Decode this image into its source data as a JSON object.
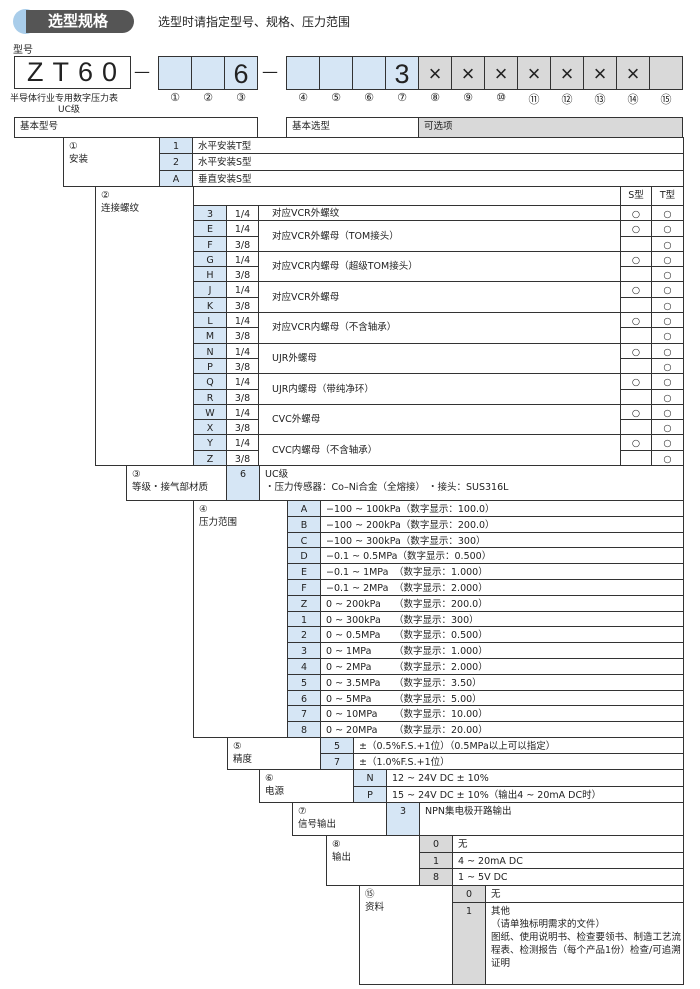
{
  "header": {
    "title": "选型规格",
    "subtitle": "选型时请指定型号、规格、压力范围"
  },
  "model": {
    "label": "型号",
    "base": "ZT60",
    "desc": "半导体行业专用数字压力表",
    "grade": "UC级",
    "dash": "—",
    "group1": [
      "",
      "",
      "6"
    ],
    "group2": [
      "",
      "",
      "",
      "3",
      "×",
      "×",
      "×",
      "×",
      "×",
      "×",
      "×",
      ""
    ],
    "numbers": [
      "①",
      "②",
      "③",
      "④",
      "⑤",
      "⑥",
      "⑦",
      "⑧",
      "⑨",
      "⑩",
      "⑪",
      "⑫",
      "⑬",
      "⑭",
      "⑮"
    ]
  },
  "legend": {
    "basic_model": "基本型号",
    "basic_selection": "基本选型",
    "optional": "可选项"
  },
  "colors": {
    "code_blue": "#d6e6f5",
    "optional_gray": "#d9d9d9",
    "pill": "#555555",
    "dot": "#a9cdea"
  },
  "sections": {
    "s1": {
      "num": "①",
      "label": "安装",
      "rows": [
        {
          "code": "1",
          "text": "水平安装T型"
        },
        {
          "code": "2",
          "text": "水平安装S型"
        },
        {
          "code": "A",
          "text": "垂直安装S型"
        }
      ]
    },
    "s2": {
      "num": "②",
      "label": "连接螺纹",
      "col_s": "S型",
      "col_t": "T型",
      "mark": "○",
      "rows": [
        {
          "code": "3",
          "size": "1/4",
          "s": true,
          "t": true
        },
        {
          "code": "E",
          "size": "1/4",
          "s": true,
          "t": true
        },
        {
          "code": "F",
          "size": "3/8",
          "s": false,
          "t": true
        },
        {
          "code": "G",
          "size": "1/4",
          "s": true,
          "t": true
        },
        {
          "code": "H",
          "size": "3/8",
          "s": false,
          "t": true
        },
        {
          "code": "J",
          "size": "1/4",
          "s": true,
          "t": true
        },
        {
          "code": "K",
          "size": "3/8",
          "s": false,
          "t": true
        },
        {
          "code": "L",
          "size": "1/4",
          "s": true,
          "t": true
        },
        {
          "code": "M",
          "size": "3/8",
          "s": false,
          "t": true
        },
        {
          "code": "N",
          "size": "1/4",
          "s": true,
          "t": true
        },
        {
          "code": "P",
          "size": "3/8",
          "s": false,
          "t": true
        },
        {
          "code": "Q",
          "size": "1/4",
          "s": true,
          "t": true
        },
        {
          "code": "R",
          "size": "3/8",
          "s": false,
          "t": true
        },
        {
          "code": "W",
          "size": "1/4",
          "s": true,
          "t": true
        },
        {
          "code": "X",
          "size": "3/8",
          "s": false,
          "t": true
        },
        {
          "code": "Y",
          "size": "1/4",
          "s": true,
          "t": true
        },
        {
          "code": "Z",
          "size": "3/8",
          "s": false,
          "t": true
        }
      ],
      "groups": [
        {
          "text": "对应VCR外螺纹",
          "span": 1
        },
        {
          "text": "对应VCR外螺母（TOM接头）",
          "span": 2
        },
        {
          "text": "对应VCR内螺母（超级TOM接头）",
          "span": 2
        },
        {
          "text": "对应VCR外螺母",
          "span": 2
        },
        {
          "text": "对应VCR内螺母（不含轴承）",
          "span": 2
        },
        {
          "text": "UJR外螺母",
          "span": 2
        },
        {
          "text": "UJR内螺母（带纯净环）",
          "span": 2
        },
        {
          "text": "CVC外螺母",
          "span": 2
        },
        {
          "text": "CVC内螺母（不含轴承）",
          "span": 2
        }
      ]
    },
    "s3": {
      "num": "③",
      "label": "等级・接气部材质",
      "rows": [
        {
          "code": "6",
          "text": "UC级",
          "text2": "・压力传感器：Co–Ni合金（全熔接）  ・接头：SUS316L"
        }
      ]
    },
    "s4": {
      "num": "④",
      "label": "压力范围",
      "rows": [
        {
          "code": "A",
          "range": "−100 ~ 100kPa",
          "disp": "（数字显示：100.0）"
        },
        {
          "code": "B",
          "range": "−100 ~ 200kPa",
          "disp": "（数字显示：200.0）"
        },
        {
          "code": "C",
          "range": "−100 ~ 300kPa",
          "disp": "（数字显示：300）"
        },
        {
          "code": "D",
          "range": "−0.1 ~ 0.5MPa",
          "disp": "（数字显示：0.500）"
        },
        {
          "code": "E",
          "range": "−0.1 ~ 1MPa",
          "disp": "（数字显示：1.000）"
        },
        {
          "code": "F",
          "range": "−0.1 ~ 2MPa",
          "disp": "（数字显示：2.000）"
        },
        {
          "code": "Z",
          "range": "0 ~ 200kPa",
          "disp": "（数字显示：200.0）"
        },
        {
          "code": "1",
          "range": "0 ~ 300kPa",
          "disp": "（数字显示：300）"
        },
        {
          "code": "2",
          "range": "0 ~ 0.5MPa",
          "disp": "（数字显示：0.500）"
        },
        {
          "code": "3",
          "range": "0 ~ 1MPa",
          "disp": "（数字显示：1.000）"
        },
        {
          "code": "4",
          "range": "0 ~ 2MPa",
          "disp": "（数字显示：2.000）"
        },
        {
          "code": "5",
          "range": "0 ~ 3.5MPa",
          "disp": "（数字显示：3.50）"
        },
        {
          "code": "6",
          "range": "0 ~ 5MPa",
          "disp": "（数字显示：5.00）"
        },
        {
          "code": "7",
          "range": "0 ~ 10MPa",
          "disp": "（数字显示：10.00）"
        },
        {
          "code": "8",
          "range": "0 ~ 20MPa",
          "disp": "（数字显示：20.00）"
        }
      ]
    },
    "s5": {
      "num": "⑤",
      "label": "精度",
      "rows": [
        {
          "code": "5",
          "text": "±（0.5%F.S.+1位）（0.5MPa以上可以指定）"
        },
        {
          "code": "7",
          "text": "±（1.0%F.S.+1位）"
        }
      ]
    },
    "s6": {
      "num": "⑥",
      "label": "电源",
      "rows": [
        {
          "code": "N",
          "text": "12 ~ 24V DC ± 10%"
        },
        {
          "code": "P",
          "text": "15 ~ 24V DC ± 10%（输出4 ~ 20mA DC时）"
        }
      ]
    },
    "s7": {
      "num": "⑦",
      "label": "信号输出",
      "rows": [
        {
          "code": "3",
          "text": "NPN集电极开路输出"
        }
      ]
    },
    "s8": {
      "num": "⑧",
      "label": "输出",
      "rows": [
        {
          "code": "0",
          "text": "无"
        },
        {
          "code": "1",
          "text": "4 ~ 20mA DC"
        },
        {
          "code": "8",
          "text": "1 ~ 5V DC"
        }
      ]
    },
    "s15": {
      "num": "⑮",
      "label": "资料",
      "rows": [
        {
          "code": "0",
          "text": "无"
        },
        {
          "code": "1",
          "text": "其他",
          "text2": "（请单独标明需求的文件）",
          "text3": "图纸、使用说明书、检查要领书、制造工艺流程表、检测报告（每个产品1份）检查/可追溯证明"
        }
      ]
    }
  }
}
